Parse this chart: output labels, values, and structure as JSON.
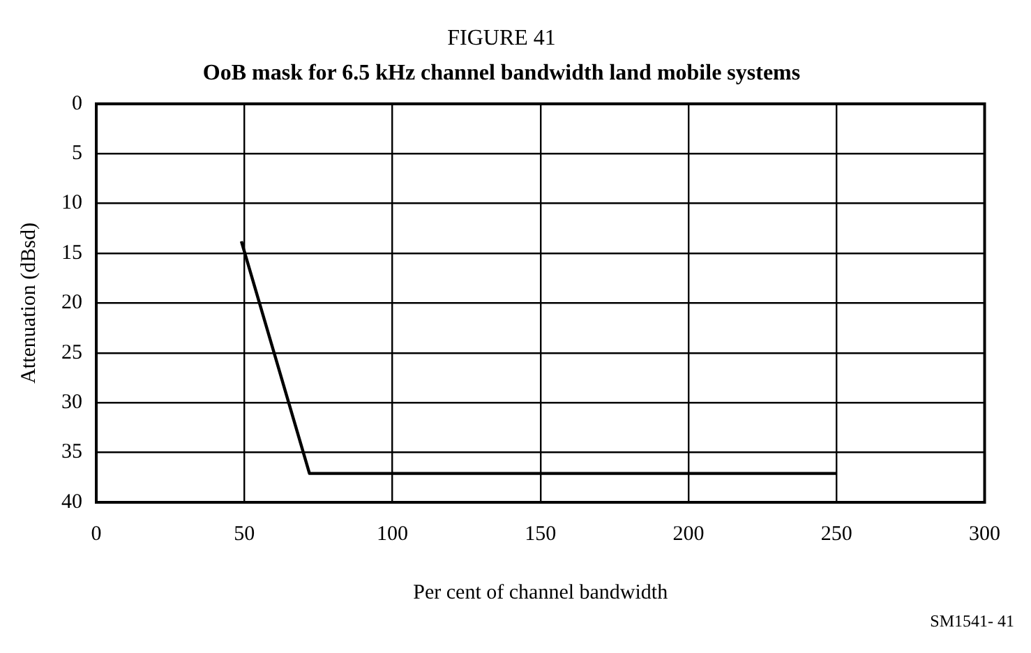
{
  "chart_data": {
    "type": "line",
    "title": "FIGURE 41",
    "subtitle": "OoB mask for 6.5 kHz channel bandwidth land mobile systems",
    "xlabel": "Per cent of channel bandwidth",
    "ylabel": "Attenuation (dBsd)",
    "annotations": [
      "SM1541- 41"
    ],
    "x": [
      49,
      72,
      250
    ],
    "series": [
      {
        "color": "#000000",
        "values": [
          13.8,
          37.1,
          37.1
        ]
      }
    ],
    "xlim": [
      0,
      300
    ],
    "xticks": [
      0,
      50,
      100,
      150,
      200,
      250,
      300
    ],
    "ylim": [
      40,
      0
    ],
    "yticks": [
      0,
      5,
      10,
      15,
      20,
      25,
      30,
      35,
      40
    ],
    "grid": true,
    "legend": false,
    "marker": "none",
    "line_style": "solid"
  }
}
